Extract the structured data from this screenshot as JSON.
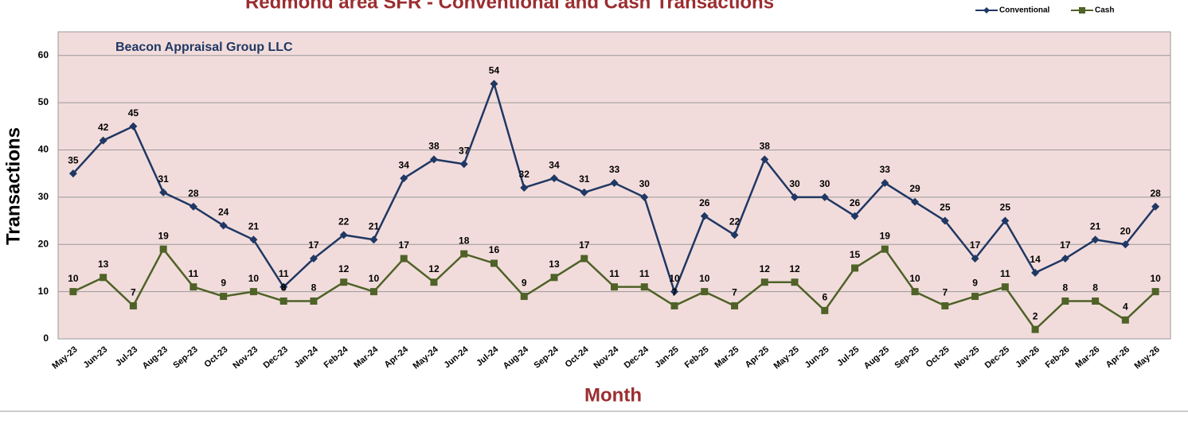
{
  "chart_data": {
    "type": "line",
    "title": "Redmond area SFR - Conventional and Cash Transactions",
    "annotation": "Beacon Appraisal Group LLC",
    "x_label": "Month",
    "y_label": "Transactions",
    "categories": [
      "May-23",
      "Jun-23",
      "Jul-23",
      "Aug-23",
      "Sep-23",
      "Oct-23",
      "Nov-23",
      "Dec-23",
      "Jan-24",
      "Feb-24",
      "Mar-24",
      "Apr-24",
      "May-24",
      "Jun-24",
      "Jul-24",
      "Aug-24",
      "Sep-24",
      "Oct-24",
      "Nov-24",
      "Dec-24",
      "Jan-25",
      "Feb-25",
      "Mar-25",
      "Apr-25",
      "May-25",
      "Jun-25",
      "Jul-25",
      "Aug-25",
      "Sep-25",
      "Oct-25",
      "Nov-25",
      "Dec-25",
      "Jan-26",
      "Feb-26",
      "Mar-26",
      "Apr-26",
      "May-26"
    ],
    "series": [
      {
        "name": "Conventional",
        "color": "#1f3864",
        "marker": "diamond",
        "values": [
          35,
          42,
          45,
          31,
          28,
          24,
          21,
          11,
          17,
          22,
          21,
          34,
          38,
          37,
          54,
          32,
          34,
          31,
          33,
          30,
          10,
          26,
          22,
          38,
          30,
          30,
          26,
          33,
          29,
          25,
          17,
          25,
          14,
          17,
          21,
          20,
          28
        ]
      },
      {
        "name": "Cash",
        "color": "#4f6228",
        "marker": "square",
        "values": [
          10,
          13,
          7,
          19,
          11,
          9,
          10,
          8,
          8,
          12,
          10,
          17,
          12,
          18,
          16,
          9,
          13,
          17,
          11,
          11,
          7,
          10,
          7,
          12,
          12,
          6,
          15,
          19,
          10,
          7,
          9,
          11,
          2,
          8,
          8,
          4,
          10
        ]
      }
    ],
    "ylim": [
      0,
      65
    ],
    "yticks": [
      0,
      10,
      20,
      30,
      40,
      50,
      60
    ],
    "grid": true,
    "legend": "top-right"
  }
}
